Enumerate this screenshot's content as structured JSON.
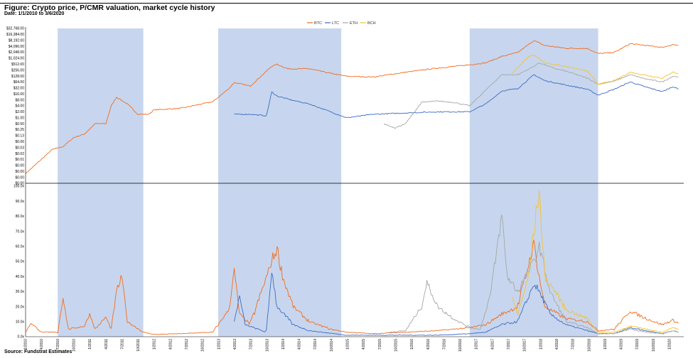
{
  "header": {
    "title": "Figure: Crypto price, P/CMR valuation, market cycle history",
    "subtitle": "Date: 1/1/2010 to 3/6/2020"
  },
  "footer": {
    "source": "Source: Fundstrat Estimates"
  },
  "colors": {
    "BTC": "#f26b1d",
    "LTC": "#3e6bc4",
    "ETH": "#a6a6a6",
    "BCH": "#f7c22b",
    "shade": "#c7d6ee"
  },
  "chart_data": [
    {
      "type": "line",
      "title": "",
      "y_scale": "log2",
      "legend": [
        "BTC",
        "LTC",
        "ETH",
        "BCH"
      ],
      "legend_position": "top-center",
      "y_tick_labels": [
        "$0.00",
        "$0.00",
        "$0.00",
        "$0.00",
        "$0.01",
        "$0.02",
        "$0.03",
        "$0.06",
        "$0.13",
        "$0.25",
        "$0.50",
        "$1.00",
        "$2.00",
        "$4.00",
        "$8.00",
        "$16.00",
        "$32.00",
        "$64.00",
        "$128.00",
        "$256.00",
        "$512.00",
        "$1,024.00",
        "$2,048.00",
        "$4,096.00",
        "$8,192.00",
        "$16,384.00",
        "$32,768.00"
      ],
      "shaded_periods": [
        [
          "2010-07",
          "2011-11"
        ],
        [
          "2013-01",
          "2014-12"
        ],
        [
          "2016-12",
          "2018-12"
        ]
      ],
      "series": [
        {
          "name": "BTC",
          "points": [
            [
              "2010-01",
              0.003
            ],
            [
              "2010-06",
              0.05
            ],
            [
              "2010-08",
              0.07
            ],
            [
              "2010-10",
              0.2
            ],
            [
              "2010-12",
              0.3
            ],
            [
              "2011-02",
              1
            ],
            [
              "2011-04",
              1
            ],
            [
              "2011-05",
              8
            ],
            [
              "2011-06",
              22
            ],
            [
              "2011-08",
              10
            ],
            [
              "2011-10",
              3
            ],
            [
              "2011-12",
              3
            ],
            [
              "2012-01",
              5
            ],
            [
              "2012-06",
              6
            ],
            [
              "2012-12",
              13
            ],
            [
              "2013-03",
              60
            ],
            [
              "2013-04",
              120
            ],
            [
              "2013-07",
              80
            ],
            [
              "2013-11",
              800
            ],
            [
              "2013-12",
              1000
            ],
            [
              "2014-02",
              600
            ],
            [
              "2014-06",
              600
            ],
            [
              "2014-10",
              350
            ],
            [
              "2015-01",
              250
            ],
            [
              "2015-06",
              230
            ],
            [
              "2015-12",
              400
            ],
            [
              "2016-06",
              650
            ],
            [
              "2016-12",
              950
            ],
            [
              "2017-03",
              1200
            ],
            [
              "2017-06",
              2500
            ],
            [
              "2017-09",
              4000
            ],
            [
              "2017-12",
              16000
            ],
            [
              "2018-02",
              9000
            ],
            [
              "2018-06",
              6500
            ],
            [
              "2018-10",
              6400
            ],
            [
              "2018-12",
              3500
            ],
            [
              "2019-03",
              4000
            ],
            [
              "2019-06",
              11000
            ],
            [
              "2019-09",
              9000
            ],
            [
              "2019-12",
              7200
            ],
            [
              "2020-02",
              10000
            ],
            [
              "2020-03",
              9000
            ]
          ]
        },
        {
          "name": "LTC",
          "points": [
            [
              "2013-04",
              3
            ],
            [
              "2013-07",
              3
            ],
            [
              "2013-10",
              2.5
            ],
            [
              "2013-11",
              40
            ],
            [
              "2013-12",
              25
            ],
            [
              "2014-03",
              15
            ],
            [
              "2014-06",
              10
            ],
            [
              "2014-10",
              4
            ],
            [
              "2015-01",
              2
            ],
            [
              "2015-06",
              3
            ],
            [
              "2015-12",
              3.5
            ],
            [
              "2016-06",
              4
            ],
            [
              "2016-12",
              4
            ],
            [
              "2017-03",
              10
            ],
            [
              "2017-06",
              45
            ],
            [
              "2017-09",
              60
            ],
            [
              "2017-12",
              300
            ],
            [
              "2018-02",
              150
            ],
            [
              "2018-06",
              90
            ],
            [
              "2018-10",
              55
            ],
            [
              "2018-12",
              28
            ],
            [
              "2019-03",
              55
            ],
            [
              "2019-06",
              130
            ],
            [
              "2019-09",
              70
            ],
            [
              "2019-12",
              42
            ],
            [
              "2020-02",
              75
            ],
            [
              "2020-03",
              55
            ]
          ]
        },
        {
          "name": "ETH",
          "points": [
            [
              "2015-08",
              1
            ],
            [
              "2015-10",
              0.6
            ],
            [
              "2015-12",
              1
            ],
            [
              "2016-03",
              12
            ],
            [
              "2016-06",
              14
            ],
            [
              "2016-09",
              12
            ],
            [
              "2016-12",
              8
            ],
            [
              "2017-03",
              50
            ],
            [
              "2017-06",
              300
            ],
            [
              "2017-09",
              300
            ],
            [
              "2017-12",
              800
            ],
            [
              "2018-01",
              1200
            ],
            [
              "2018-04",
              600
            ],
            [
              "2018-06",
              450
            ],
            [
              "2018-10",
              200
            ],
            [
              "2018-12",
              100
            ],
            [
              "2019-03",
              140
            ],
            [
              "2019-06",
              300
            ],
            [
              "2019-09",
              180
            ],
            [
              "2019-12",
              130
            ],
            [
              "2020-02",
              250
            ],
            [
              "2020-03",
              230
            ]
          ]
        },
        {
          "name": "BCH",
          "points": [
            [
              "2017-08",
              350
            ],
            [
              "2017-11",
              2500
            ],
            [
              "2017-12",
              3000
            ],
            [
              "2018-02",
              1200
            ],
            [
              "2018-06",
              800
            ],
            [
              "2018-10",
              450
            ],
            [
              "2018-12",
              100
            ],
            [
              "2019-03",
              150
            ],
            [
              "2019-06",
              400
            ],
            [
              "2019-09",
              280
            ],
            [
              "2019-12",
              200
            ],
            [
              "2020-02",
              420
            ],
            [
              "2020-03",
              320
            ]
          ]
        }
      ]
    },
    {
      "type": "line",
      "title": "",
      "y_tick_labels": [
        "0.0x",
        "10.0x",
        "20.0x",
        "30.0x",
        "40.0x",
        "50.0x",
        "60.0x",
        "70.0x",
        "80.0x",
        "90.0x",
        "100.0x"
      ],
      "ylim": [
        0,
        100
      ],
      "x_tick_labels": [
        "1/2010",
        "4/2010",
        "7/2010",
        "10/2010",
        "1/2011",
        "4/2011",
        "7/2011",
        "10/2011",
        "1/2012",
        "4/2012",
        "7/2012",
        "10/2012",
        "1/2013",
        "4/2013",
        "7/2013",
        "10/2013",
        "1/2014",
        "4/2014",
        "7/2014",
        "10/2014",
        "1/2015",
        "4/2015",
        "7/2015",
        "10/2015",
        "1/2016",
        "4/2016",
        "7/2016",
        "10/2016",
        "1/2017",
        "4/2017",
        "7/2017",
        "10/2017",
        "1/2018",
        "4/2018",
        "7/2018",
        "10/2018",
        "1/2019",
        "4/2019",
        "7/2019",
        "10/2019",
        "1/2020"
      ],
      "series": [
        {
          "name": "BTC",
          "points": [
            [
              "2010-01",
              3
            ],
            [
              "2010-02",
              9
            ],
            [
              "2010-04",
              3
            ],
            [
              "2010-07",
              3
            ],
            [
              "2010-08",
              26
            ],
            [
              "2010-09",
              5
            ],
            [
              "2010-12",
              7
            ],
            [
              "2011-01",
              15
            ],
            [
              "2011-02",
              5
            ],
            [
              "2011-04",
              13
            ],
            [
              "2011-05",
              5
            ],
            [
              "2011-06",
              30
            ],
            [
              "2011-07",
              40
            ],
            [
              "2011-08",
              10
            ],
            [
              "2011-11",
              3
            ],
            [
              "2012-01",
              1.5
            ],
            [
              "2012-06",
              2
            ],
            [
              "2012-12",
              3
            ],
            [
              "2013-03",
              18
            ],
            [
              "2013-04",
              44
            ],
            [
              "2013-05",
              15
            ],
            [
              "2013-07",
              8
            ],
            [
              "2013-11",
              50
            ],
            [
              "2013-12",
              59
            ],
            [
              "2014-01",
              40
            ],
            [
              "2014-03",
              20
            ],
            [
              "2014-06",
              10
            ],
            [
              "2014-10",
              5
            ],
            [
              "2015-01",
              3
            ],
            [
              "2015-06",
              2
            ],
            [
              "2015-12",
              3
            ],
            [
              "2016-06",
              4
            ],
            [
              "2016-12",
              6
            ],
            [
              "2017-03",
              8
            ],
            [
              "2017-06",
              15
            ],
            [
              "2017-09",
              20
            ],
            [
              "2017-12",
              62
            ],
            [
              "2018-01",
              40
            ],
            [
              "2018-02",
              20
            ],
            [
              "2018-06",
              12
            ],
            [
              "2018-10",
              10
            ],
            [
              "2018-12",
              4
            ],
            [
              "2019-03",
              5
            ],
            [
              "2019-06",
              17
            ],
            [
              "2019-09",
              12
            ],
            [
              "2019-12",
              8
            ],
            [
              "2020-02",
              11
            ],
            [
              "2020-03",
              9
            ]
          ]
        },
        {
          "name": "LTC",
          "points": [
            [
              "2013-04",
              10
            ],
            [
              "2013-05",
              27
            ],
            [
              "2013-06",
              8
            ],
            [
              "2013-10",
              3
            ],
            [
              "2013-11",
              44
            ],
            [
              "2013-12",
              20
            ],
            [
              "2014-03",
              8
            ],
            [
              "2014-06",
              4
            ],
            [
              "2015-01",
              1
            ],
            [
              "2016-06",
              1
            ],
            [
              "2016-12",
              2
            ],
            [
              "2017-03",
              3
            ],
            [
              "2017-06",
              8
            ],
            [
              "2017-09",
              10
            ],
            [
              "2017-12",
              35
            ],
            [
              "2018-01",
              30
            ],
            [
              "2018-03",
              15
            ],
            [
              "2018-06",
              8
            ],
            [
              "2018-12",
              2
            ],
            [
              "2019-03",
              2
            ],
            [
              "2019-06",
              6
            ],
            [
              "2019-09",
              4
            ],
            [
              "2019-12",
              2
            ],
            [
              "2020-02",
              4
            ],
            [
              "2020-03",
              3
            ]
          ]
        },
        {
          "name": "ETH",
          "points": [
            [
              "2015-09",
              3
            ],
            [
              "2015-12",
              4
            ],
            [
              "2016-03",
              20
            ],
            [
              "2016-04",
              36
            ],
            [
              "2016-06",
              20
            ],
            [
              "2016-09",
              12
            ],
            [
              "2016-12",
              6
            ],
            [
              "2017-02",
              5
            ],
            [
              "2017-04",
              30
            ],
            [
              "2017-06",
              81
            ],
            [
              "2017-07",
              40
            ],
            [
              "2017-09",
              30
            ],
            [
              "2017-12",
              50
            ],
            [
              "2018-01",
              60
            ],
            [
              "2018-03",
              30
            ],
            [
              "2018-06",
              10
            ],
            [
              "2018-10",
              6
            ],
            [
              "2018-12",
              2
            ],
            [
              "2019-03",
              2
            ],
            [
              "2019-06",
              5
            ],
            [
              "2019-09",
              3
            ],
            [
              "2019-12",
              2
            ],
            [
              "2020-02",
              4
            ],
            [
              "2020-03",
              3
            ]
          ]
        },
        {
          "name": "BCH",
          "points": [
            [
              "2017-08",
              25
            ],
            [
              "2017-09",
              15
            ],
            [
              "2017-11",
              40
            ],
            [
              "2017-12",
              70
            ],
            [
              "2018-01",
              97
            ],
            [
              "2018-02",
              40
            ],
            [
              "2018-04",
              30
            ],
            [
              "2018-06",
              18
            ],
            [
              "2018-10",
              12
            ],
            [
              "2018-12",
              3
            ],
            [
              "2019-03",
              3
            ],
            [
              "2019-06",
              7
            ],
            [
              "2019-09",
              5
            ],
            [
              "2019-12",
              3
            ],
            [
              "2020-02",
              6
            ],
            [
              "2020-03",
              5
            ]
          ]
        }
      ]
    }
  ]
}
